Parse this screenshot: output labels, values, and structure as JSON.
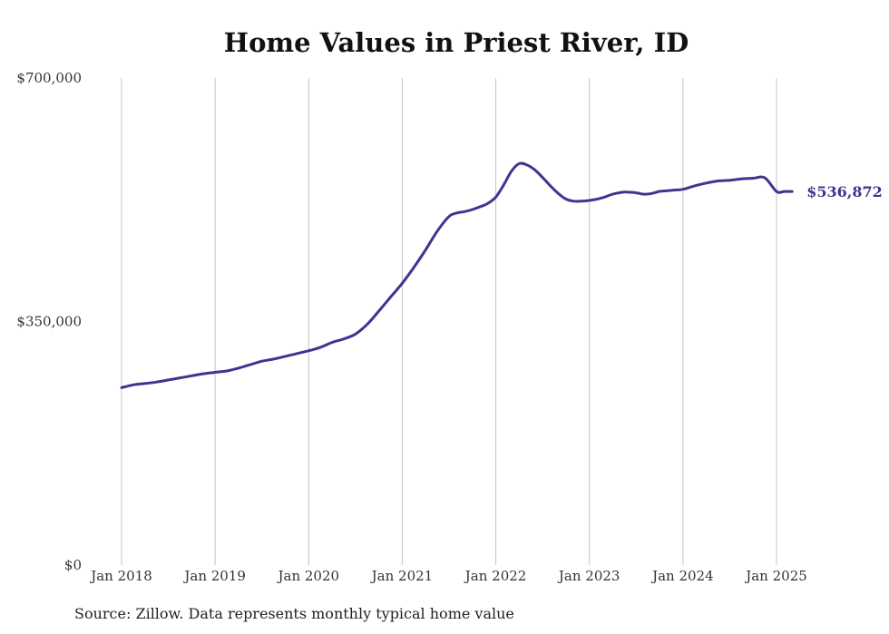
{
  "chart_data": {
    "type": "line",
    "title": "Home Values in Priest River, ID",
    "xlabel": "",
    "ylabel": "",
    "ylim": [
      0,
      700000
    ],
    "y_ticks": [
      {
        "value": 0,
        "label": "$0"
      },
      {
        "value": 350000,
        "label": "$350,000"
      },
      {
        "value": 700000,
        "label": "$700,000"
      }
    ],
    "x_ticks": [
      {
        "value": 2018.0,
        "label": "Jan 2018"
      },
      {
        "value": 2019.0,
        "label": "Jan 2019"
      },
      {
        "value": 2020.0,
        "label": "Jan 2020"
      },
      {
        "value": 2021.0,
        "label": "Jan 2021"
      },
      {
        "value": 2022.0,
        "label": "Jan 2022"
      },
      {
        "value": 2023.0,
        "label": "Jan 2023"
      },
      {
        "value": 2024.0,
        "label": "Jan 2024"
      },
      {
        "value": 2025.0,
        "label": "Jan 2025"
      }
    ],
    "grid": "vertical",
    "line_color": "#3d3590",
    "end_label": "$536,872",
    "series": [
      {
        "x": [
          2018.0,
          2018.125,
          2018.25,
          2018.375,
          2018.5,
          2018.625,
          2018.75,
          2018.875,
          2019.0,
          2019.125,
          2019.25,
          2019.375,
          2019.5,
          2019.625,
          2019.75,
          2019.875,
          2020.0,
          2020.125,
          2020.25,
          2020.375,
          2020.5,
          2020.625,
          2020.75,
          2020.875,
          2021.0,
          2021.125,
          2021.25,
          2021.375,
          2021.5,
          2021.583,
          2021.667,
          2021.75,
          2021.833,
          2021.917,
          2022.0,
          2022.083,
          2022.167,
          2022.25,
          2022.333,
          2022.417,
          2022.5,
          2022.583,
          2022.667,
          2022.75,
          2022.833,
          2022.917,
          2023.0,
          2023.083,
          2023.167,
          2023.25,
          2023.375,
          2023.5,
          2023.583,
          2023.667,
          2023.75,
          2023.833,
          2023.917,
          2024.0,
          2024.125,
          2024.25,
          2024.375,
          2024.5,
          2024.625,
          2024.75,
          2024.875,
          2025.0,
          2025.083,
          2025.167
        ],
        "y": [
          255000,
          259000,
          261000,
          263000,
          266000,
          269000,
          272000,
          275000,
          277000,
          279000,
          283000,
          288000,
          293000,
          296000,
          300000,
          304000,
          308000,
          313000,
          320000,
          325000,
          332000,
          346000,
          365000,
          385000,
          405000,
          428000,
          453000,
          480000,
          501000,
          506000,
          508000,
          511000,
          515000,
          520000,
          529000,
          546000,
          566000,
          577000,
          575000,
          568000,
          557000,
          545000,
          534000,
          526000,
          523000,
          523000,
          524000,
          526000,
          529000,
          533000,
          536000,
          535000,
          533000,
          534000,
          537000,
          538000,
          539000,
          540000,
          545000,
          549000,
          552000,
          553000,
          555000,
          556000,
          556500,
          536872,
          536872,
          536872
        ]
      }
    ]
  },
  "source": "Source: Zillow. Data represents monthly typical home value"
}
